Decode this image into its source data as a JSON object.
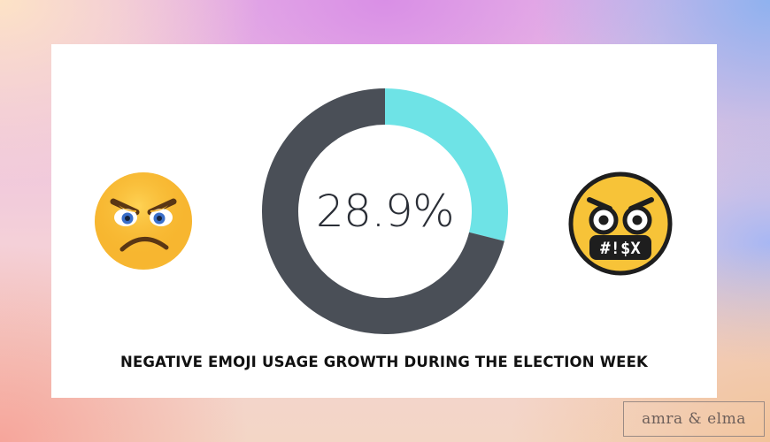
{
  "chart_data": {
    "type": "pie",
    "title": "NEGATIVE EMOJI USAGE GROWTH DURING THE ELECTION WEEK",
    "center_label": "28.9%",
    "values": [
      28.9,
      71.1
    ],
    "colors": [
      "#6ee3e6",
      "#4a4f57"
    ]
  },
  "icons": {
    "left": "angry-face-icon",
    "right": "face-with-symbols-on-mouth-icon"
  },
  "emoji_symbols": "#!$X",
  "brand": "amra & elma"
}
